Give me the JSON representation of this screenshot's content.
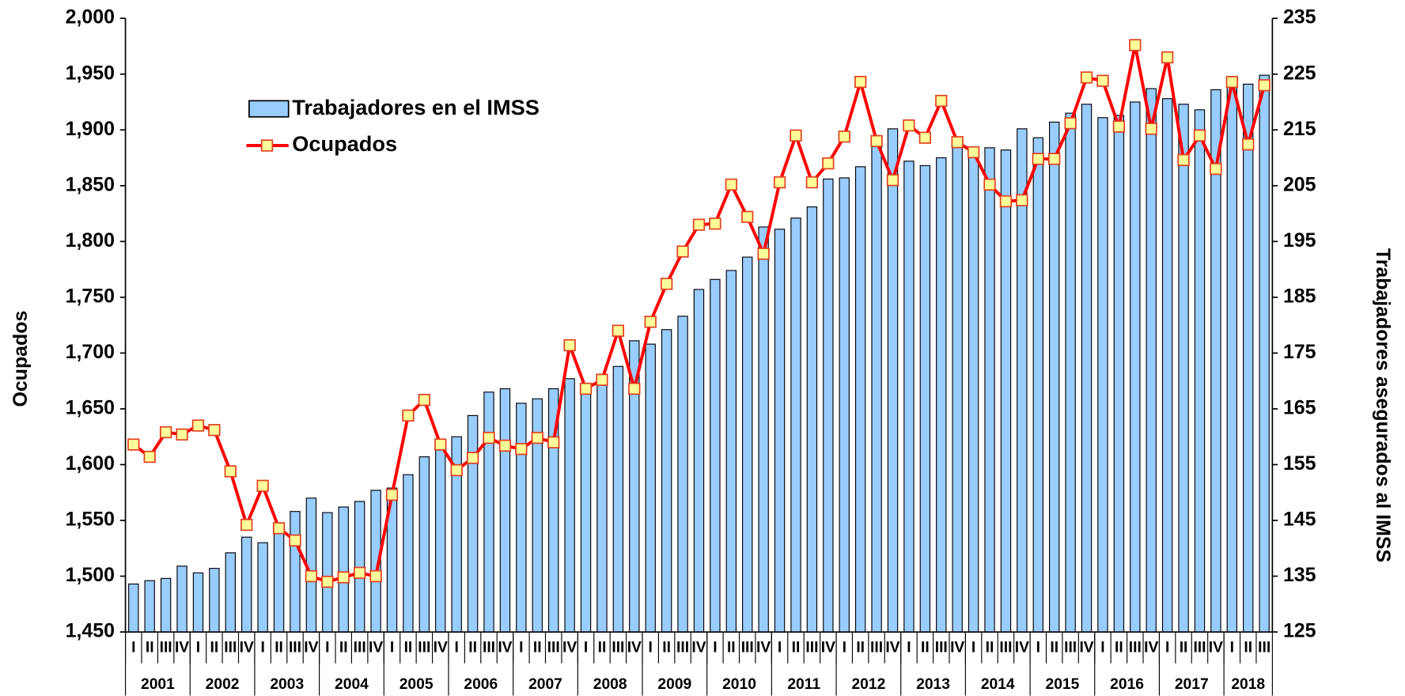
{
  "chart_data": {
    "type": "combo",
    "y_label": "Ocupados",
    "y2_label": "Trabajadores asegurados al IMSS",
    "categories": [
      "I",
      "II",
      "III",
      "IV",
      "I",
      "II",
      "III",
      "IV",
      "I",
      "II",
      "III",
      "IV",
      "I",
      "II",
      "III",
      "IV",
      "I",
      "II",
      "III",
      "IV",
      "I",
      "II",
      "III",
      "IV",
      "I",
      "II",
      "III",
      "IV",
      "I",
      "II",
      "III",
      "IV",
      "I",
      "II",
      "III",
      "IV",
      "I",
      "II",
      "III",
      "IV",
      "I",
      "II",
      "III",
      "IV",
      "I",
      "II",
      "III",
      "IV",
      "I",
      "II",
      "III",
      "IV",
      "I",
      "II",
      "III",
      "IV",
      "I",
      "II",
      "III",
      "IV",
      "I",
      "II",
      "III",
      "IV",
      "I",
      "II",
      "III",
      "IV",
      "I",
      "II",
      "III"
    ],
    "years": [
      "2001",
      "2002",
      "2003",
      "2004",
      "2005",
      "2006",
      "2007",
      "2008",
      "2009",
      "2010",
      "2011",
      "2012",
      "2013",
      "2014",
      "2015",
      "2016",
      "2017",
      "2018"
    ],
    "series": [
      {
        "name": "Trabajadores en el IMSS",
        "type": "bar",
        "axis": "y2",
        "color": "#99ccff",
        "values": [
          133.6,
          134.2,
          134.6,
          136.8,
          135.6,
          136.4,
          139.2,
          142.0,
          141.0,
          143.0,
          146.6,
          149.0,
          146.4,
          147.4,
          148.4,
          150.4,
          150.8,
          153.2,
          156.4,
          159.0,
          160.0,
          163.8,
          168.0,
          168.6,
          166.0,
          166.8,
          168.6,
          170.4,
          169.2,
          171.2,
          172.6,
          177.2,
          176.6,
          179.2,
          181.6,
          186.4,
          188.2,
          189.8,
          192.2,
          197.6,
          197.2,
          199.2,
          201.2,
          206.2,
          206.4,
          208.4,
          213.4,
          215.2,
          209.4,
          208.6,
          210.0,
          213.2,
          210.6,
          211.8,
          211.4,
          215.2,
          213.6,
          216.4,
          218.0,
          219.6,
          217.2,
          217.6,
          220.0,
          222.4,
          220.6,
          219.6,
          218.6,
          222.2,
          223.4,
          223.2,
          224.8
        ]
      },
      {
        "name": "Ocupados",
        "type": "line",
        "axis": "y",
        "color": "#ff0000",
        "values": [
          1618,
          1607,
          1629,
          1627,
          1635,
          1631,
          1594,
          1546,
          1581,
          1543,
          1532,
          1500,
          1495,
          1499,
          1503,
          1500,
          1573,
          1644,
          1658,
          1618,
          1595,
          1606,
          1624,
          1617,
          1614,
          1624,
          1620,
          1707,
          1668,
          1676,
          1720,
          1668,
          1728,
          1762,
          1791,
          1815,
          1816,
          1851,
          1822,
          1789,
          1853,
          1895,
          1853,
          1870,
          1894,
          1943,
          1890,
          1855,
          1904,
          1893,
          1926,
          1889,
          1880,
          1851,
          1836,
          1837,
          1874,
          1874,
          1906,
          1947,
          1944,
          1903,
          1976,
          1901,
          1965,
          1873,
          1895,
          1865,
          1943,
          1887,
          1940
        ]
      }
    ],
    "ylim": [
      1450,
      2000
    ],
    "yticks": [
      {
        "value": 1450,
        "label": "1,450"
      },
      {
        "value": 1500,
        "label": "1,500"
      },
      {
        "value": 1550,
        "label": "1,550"
      },
      {
        "value": 1600,
        "label": "1,600"
      },
      {
        "value": 1650,
        "label": "1,650"
      },
      {
        "value": 1700,
        "label": "1,700"
      },
      {
        "value": 1750,
        "label": "1,750"
      },
      {
        "value": 1800,
        "label": "1,800"
      },
      {
        "value": 1850,
        "label": "1,850"
      },
      {
        "value": 1900,
        "label": "1,900"
      },
      {
        "value": 1950,
        "label": "1,950"
      },
      {
        "value": 2000,
        "label": "2,000"
      }
    ],
    "y2lim": [
      125,
      235
    ],
    "y2ticks": [
      125,
      135,
      145,
      155,
      165,
      175,
      185,
      195,
      205,
      215,
      225,
      235
    ],
    "grid": false,
    "legend": "upper left"
  }
}
